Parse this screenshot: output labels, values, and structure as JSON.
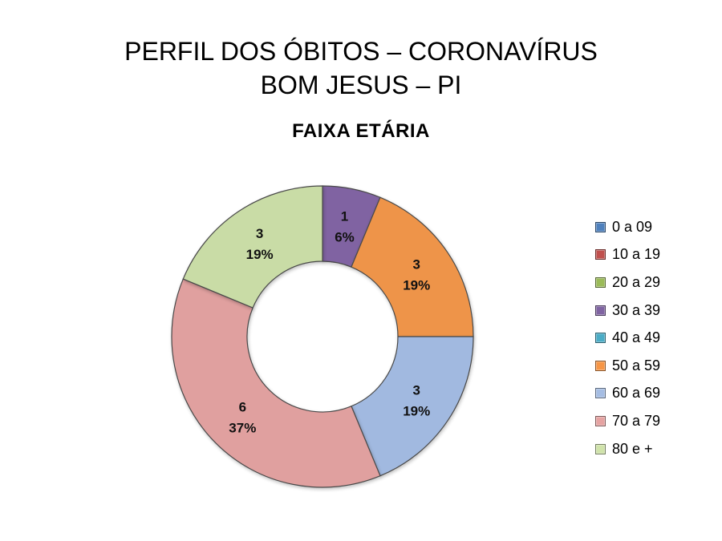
{
  "chart_data": {
    "type": "pie",
    "title_line1": "PERFIL DOS ÓBITOS – CORONAVÍRUS",
    "title_line2": "BOM JESUS – PI",
    "subtitle": "FAIXA  ETÁRIA",
    "donut": true,
    "legend_position": "right",
    "categories": [
      "0 a 09",
      "10 a 19",
      "20 a 29",
      "30 a 39",
      "40 a 49",
      "50 a 59",
      "60 a 69",
      "70 a 79",
      "80 e +"
    ],
    "values": [
      0,
      0,
      0,
      1,
      0,
      3,
      3,
      6,
      3
    ],
    "percent_labels": [
      "0%",
      "0%",
      "0%",
      "6%",
      "0%",
      "19%",
      "19%",
      "37%",
      "19%"
    ],
    "colors": [
      "#4f81bd",
      "#c0504d",
      "#9bbb59",
      "#8064a2",
      "#4bacc6",
      "#f79646",
      "#a5bde3",
      "#e6a3a2",
      "#d0e3aa"
    ],
    "slice_colors": [
      "#4f81bd",
      "#c0504d",
      "#9bbb59",
      "#8064a2",
      "#4bacc6",
      "#ee9449",
      "#a1b9e0",
      "#e0a09f",
      "#c9dca6"
    ]
  }
}
